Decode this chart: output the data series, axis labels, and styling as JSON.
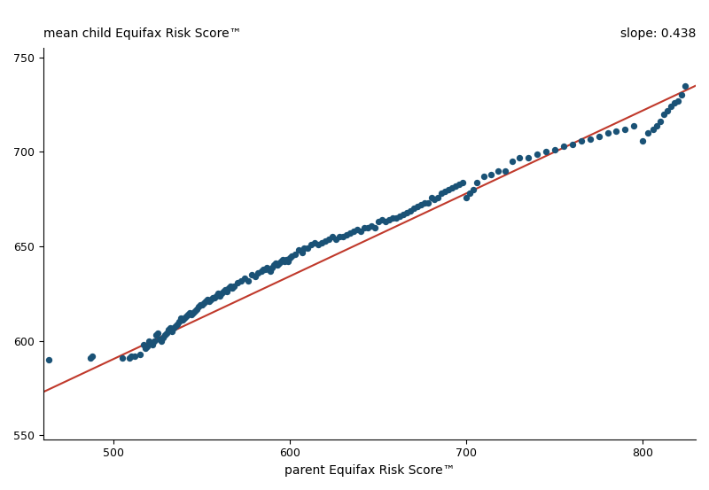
{
  "slope": 0.438,
  "intercept": 371.5,
  "x_min": 460,
  "x_max": 830,
  "y_min": 548,
  "y_max": 755,
  "xlabel": "parent Equifax Risk Score™",
  "ylabel": "mean child Equifax Risk Score™",
  "slope_label": "slope: 0.438",
  "dot_color": "#1a5276",
  "line_color": "#c0392b",
  "bg_color": "#ffffff",
  "dot_size": 28,
  "line_width": 1.5,
  "xticks": [
    500,
    600,
    700,
    800
  ],
  "yticks": [
    550,
    600,
    650,
    700,
    750
  ],
  "scatter_x": [
    463,
    487,
    488,
    505,
    509,
    510,
    512,
    515,
    517,
    518,
    519,
    520,
    521,
    522,
    523,
    524,
    525,
    526,
    527,
    528,
    529,
    530,
    531,
    532,
    533,
    534,
    535,
    536,
    537,
    538,
    539,
    540,
    541,
    542,
    543,
    544,
    545,
    546,
    547,
    548,
    549,
    550,
    551,
    552,
    553,
    554,
    555,
    556,
    557,
    558,
    559,
    560,
    561,
    562,
    563,
    564,
    565,
    566,
    567,
    568,
    570,
    572,
    574,
    576,
    578,
    580,
    582,
    584,
    585,
    586,
    587,
    588,
    589,
    590,
    591,
    592,
    593,
    594,
    595,
    596,
    597,
    598,
    599,
    600,
    601,
    603,
    605,
    607,
    608,
    610,
    612,
    614,
    616,
    618,
    620,
    622,
    624,
    626,
    628,
    630,
    632,
    634,
    636,
    638,
    640,
    642,
    644,
    646,
    648,
    650,
    652,
    654,
    656,
    658,
    660,
    662,
    664,
    666,
    668,
    670,
    672,
    674,
    676,
    678,
    680,
    682,
    684,
    686,
    688,
    690,
    692,
    694,
    696,
    698,
    700,
    702,
    704,
    706,
    710,
    714,
    718,
    722,
    726,
    730,
    735,
    740,
    745,
    750,
    755,
    760,
    765,
    770,
    775,
    780,
    785,
    790,
    795,
    800,
    803,
    806,
    808,
    810,
    812,
    814,
    816,
    818,
    820,
    822,
    824
  ],
  "scatter_y": [
    590,
    591,
    592,
    591,
    591,
    592,
    592,
    593,
    598,
    596,
    597,
    600,
    599,
    598,
    600,
    603,
    604,
    601,
    600,
    602,
    603,
    604,
    606,
    607,
    605,
    607,
    608,
    609,
    610,
    612,
    611,
    612,
    613,
    614,
    615,
    614,
    615,
    616,
    617,
    618,
    619,
    619,
    620,
    621,
    622,
    621,
    622,
    623,
    623,
    624,
    625,
    624,
    625,
    626,
    627,
    626,
    628,
    629,
    628,
    629,
    631,
    632,
    633,
    632,
    635,
    634,
    636,
    637,
    638,
    638,
    639,
    638,
    637,
    639,
    640,
    641,
    640,
    641,
    642,
    643,
    642,
    643,
    642,
    644,
    645,
    646,
    648,
    647,
    649,
    649,
    651,
    652,
    651,
    652,
    653,
    654,
    655,
    654,
    655,
    655,
    656,
    657,
    658,
    659,
    658,
    660,
    660,
    661,
    660,
    663,
    664,
    663,
    664,
    665,
    665,
    666,
    667,
    668,
    669,
    670,
    671,
    672,
    673,
    673,
    676,
    675,
    676,
    678,
    679,
    680,
    681,
    682,
    683,
    684,
    676,
    678,
    680,
    684,
    687,
    688,
    690,
    690,
    695,
    697,
    697,
    699,
    700,
    701,
    703,
    704,
    706,
    707,
    708,
    710,
    711,
    712,
    714,
    706,
    710,
    712,
    714,
    716,
    720,
    722,
    724,
    726,
    727,
    730,
    735
  ]
}
